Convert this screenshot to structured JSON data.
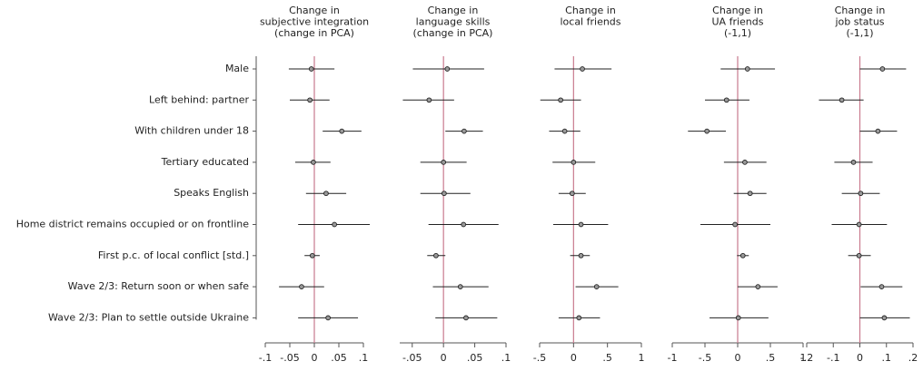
{
  "chart_data": {
    "type": "coefplot",
    "categories": [
      "Male",
      "Left behind: partner",
      "With children under 18",
      "Tertiary educated",
      "Speaks English",
      "Home district remains occupied or on frontline",
      "First p.c. of local conflict [std.]",
      "Wave 2/3: Return soon or when safe",
      "Wave 2/3: Plan to settle outside Ukraine"
    ],
    "reference_line_color": "#c97a8e",
    "panels": [
      {
        "title": [
          "Change in",
          "subjective integration",
          "(change in PCA)"
        ],
        "xlim": [
          -0.1,
          0.1
        ],
        "xticks": [
          {
            "value": -0.1,
            "label": "-.1"
          },
          {
            "value": -0.05,
            "label": "-.05"
          },
          0,
          {
            "value": 0.05,
            "label": ".05"
          },
          {
            "value": 0.1,
            "label": ".1"
          }
        ],
        "values": [
          -0.006,
          -0.009,
          0.056,
          -0.002,
          0.024,
          0.041,
          -0.004,
          -0.026,
          0.028
        ],
        "lower": [
          -0.052,
          -0.05,
          0.017,
          -0.039,
          -0.017,
          -0.033,
          -0.02,
          -0.072,
          -0.033
        ],
        "upper": [
          0.041,
          0.031,
          0.096,
          0.033,
          0.065,
          0.113,
          0.011,
          0.02,
          0.089
        ]
      },
      {
        "title": [
          "Change in",
          "language skills",
          "(change in PCA)"
        ],
        "xlim": [
          -0.07,
          0.1
        ],
        "xticks": [
          {
            "value": -0.05,
            "label": "-.05"
          },
          0,
          {
            "value": 0.05,
            "label": ".05"
          },
          {
            "value": 0.1,
            "label": ".1"
          }
        ],
        "values": [
          0.006,
          -0.023,
          0.033,
          0,
          0.001,
          0.032,
          -0.012,
          0.027,
          0.036
        ],
        "lower": [
          -0.049,
          -0.065,
          0.003,
          -0.037,
          -0.037,
          -0.024,
          -0.026,
          -0.017,
          -0.013
        ],
        "upper": [
          0.065,
          0.017,
          0.063,
          0.037,
          0.043,
          0.088,
          0.003,
          0.072,
          0.086
        ]
      },
      {
        "title": [
          "Change in",
          "local friends"
        ],
        "xlim": [
          -0.5,
          1
        ],
        "xticks": [
          {
            "value": -0.5,
            "label": "-.5"
          },
          0,
          {
            "value": 0.5,
            "label": ".5"
          },
          1
        ],
        "values": [
          0.13,
          -0.19,
          -0.13,
          0,
          -0.02,
          0.11,
          0.11,
          0.34,
          0.08
        ],
        "lower": [
          -0.28,
          -0.49,
          -0.36,
          -0.31,
          -0.22,
          -0.3,
          -0.05,
          0.03,
          -0.22
        ],
        "upper": [
          0.56,
          0.11,
          0.1,
          0.32,
          0.18,
          0.51,
          0.24,
          0.66,
          0.39
        ]
      },
      {
        "title": [
          "Change in",
          "UA friends",
          "(-1,1)"
        ],
        "xlim": [
          -1,
          1
        ],
        "xticks": [
          -1,
          {
            "value": -0.5,
            "label": "-.5"
          },
          0,
          {
            "value": 0.5,
            "label": ".5"
          },
          1
        ],
        "values": [
          0.15,
          -0.17,
          -0.47,
          0.11,
          0.19,
          -0.04,
          0.08,
          0.31,
          0.01
        ],
        "lower": [
          -0.26,
          -0.5,
          -0.76,
          -0.21,
          -0.06,
          -0.57,
          -0.01,
          0,
          -0.43
        ],
        "upper": [
          0.57,
          0.18,
          -0.18,
          0.44,
          0.44,
          0.5,
          0.17,
          0.61,
          0.47
        ]
      },
      {
        "title": [
          "Change in",
          "job status",
          "(-1,1)"
        ],
        "xlim": [
          -0.2,
          0.2
        ],
        "xticks": [
          {
            "value": -0.2,
            "label": "-.2"
          },
          {
            "value": -0.1,
            "label": "-.1"
          },
          0,
          {
            "value": 0.1,
            "label": ".1"
          },
          {
            "value": 0.2,
            "label": ".2"
          }
        ],
        "values": [
          0.085,
          -0.068,
          0.068,
          -0.024,
          0.003,
          -0.003,
          -0.003,
          0.082,
          0.092
        ],
        "lower": [
          0,
          -0.154,
          0,
          -0.096,
          -0.068,
          -0.106,
          -0.044,
          0.003,
          0
        ],
        "upper": [
          0.174,
          0.014,
          0.14,
          0.048,
          0.075,
          0.102,
          0.041,
          0.16,
          0.188
        ]
      }
    ]
  }
}
